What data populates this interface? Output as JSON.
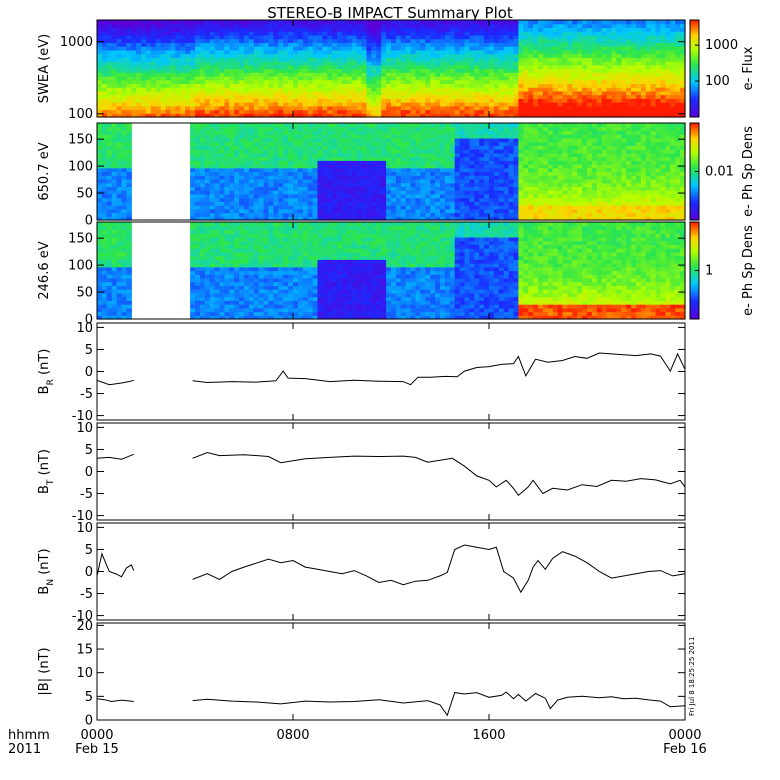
{
  "title": "STEREO-B IMPACT Summary Plot",
  "footer": {
    "left_top": "hhmm",
    "left_bottom": "2011",
    "ticks": [
      {
        "t": 0,
        "top": "0000",
        "bottom": "Feb 15"
      },
      {
        "t": 8,
        "top": "0800",
        "bottom": ""
      },
      {
        "t": 16,
        "top": "1600",
        "bottom": ""
      },
      {
        "t": 24,
        "top": "0000",
        "bottom": "Feb 16"
      }
    ]
  },
  "timestamp": "Fri Jul  8 18:25:25 2011",
  "chart_data": [
    {
      "type": "heatmap",
      "ylabel": "SWEA (eV)",
      "yscale": "log",
      "ylim": [
        90,
        2000
      ],
      "yticks": [
        "1000",
        "100"
      ],
      "yticks_val": [
        1000,
        100
      ],
      "colorbar_label": "e- Flux",
      "colorbar_scale": "log",
      "colorbar_ticks": [
        "1000",
        "100"
      ],
      "colorbar_ticks_val": [
        1000,
        100
      ],
      "colorbar_range": [
        10,
        5000
      ],
      "x_range_hours": [
        0,
        24
      ],
      "data_gap_hours": []
    },
    {
      "type": "heatmap",
      "ylabel": "650.7 eV",
      "ylim": [
        0,
        180
      ],
      "yticks": [
        "150",
        "100",
        "50",
        "0"
      ],
      "yticks_val": [
        150,
        100,
        50,
        0
      ],
      "colorbar_label": "e- Ph Sp Dens",
      "colorbar_ticks": [
        "0.01"
      ],
      "colorbar_ticks_val": [
        0.01
      ],
      "colorbar_scale": "log",
      "colorbar_range": [
        0.001,
        0.1
      ],
      "x_range_hours": [
        0,
        24
      ],
      "data_gap_hours": [
        [
          1.4,
          3.8
        ]
      ]
    },
    {
      "type": "heatmap",
      "ylabel": "246.6 eV",
      "ylim": [
        0,
        180
      ],
      "yticks": [
        "150",
        "100",
        "50",
        "0"
      ],
      "yticks_val": [
        150,
        100,
        50,
        0
      ],
      "colorbar_label": "e- Ph Sp Dens",
      "colorbar_ticks": [
        "1"
      ],
      "colorbar_ticks_val": [
        1
      ],
      "colorbar_scale": "log",
      "colorbar_range": [
        0.1,
        10
      ],
      "x_range_hours": [
        0,
        24
      ],
      "data_gap_hours": [
        [
          1.4,
          3.8
        ]
      ]
    },
    {
      "type": "line",
      "ylabel": "B",
      "ylabel_sub": "R",
      "ylabel_unit": "(nT)",
      "ylim": [
        -11,
        11
      ],
      "yticks": [
        "10",
        "5",
        "0",
        "-5",
        "-10"
      ],
      "yticks_val": [
        10,
        5,
        0,
        -5,
        -10
      ],
      "x": [
        0,
        0.5,
        1.0,
        1.3,
        1.5,
        3.9,
        4.5,
        5.5,
        6.5,
        7.3,
        7.6,
        7.8,
        8.5,
        9.5,
        10.5,
        11.5,
        12.5,
        12.8,
        13.1,
        13.6,
        14.2,
        14.7,
        15.0,
        15.5,
        16.0,
        16.5,
        17.0,
        17.2,
        17.5,
        17.9,
        18.4,
        19.0,
        19.5,
        20.0,
        20.5,
        21.0,
        21.5,
        22.0,
        22.6,
        23.0,
        23.4,
        23.7,
        24.0
      ],
      "values": [
        -2.0,
        -3.0,
        -2.6,
        -2.3,
        -2.0,
        -2.1,
        -2.5,
        -2.3,
        -2.4,
        -2.1,
        0.1,
        -1.5,
        -1.6,
        -2.3,
        -2.0,
        -2.2,
        -2.3,
        -3.0,
        -1.3,
        -1.3,
        -1.1,
        -1.2,
        0.1,
        0.9,
        1.1,
        1.6,
        1.8,
        3.4,
        -1.0,
        2.8,
        2.1,
        2.5,
        3.4,
        3.0,
        4.2,
        4.0,
        3.8,
        3.6,
        4.0,
        3.5,
        0.1,
        4.0,
        0.5
      ],
      "gap_hours": [
        [
          1.5,
          3.9
        ]
      ]
    },
    {
      "type": "line",
      "ylabel": "B",
      "ylabel_sub": "T",
      "ylabel_unit": "(nT)",
      "ylim": [
        -11,
        11
      ],
      "yticks": [
        "10",
        "5",
        "0",
        "-5",
        "-10"
      ],
      "yticks_val": [
        10,
        5,
        0,
        -5,
        -10
      ],
      "x": [
        0,
        0.5,
        1.0,
        1.5,
        3.9,
        4.5,
        5.0,
        6.0,
        7.0,
        7.5,
        8.5,
        9.5,
        10.5,
        11.5,
        12.5,
        13.0,
        13.5,
        14.5,
        15.0,
        15.5,
        16.0,
        16.3,
        16.7,
        17.0,
        17.2,
        17.4,
        17.6,
        17.8,
        18.2,
        18.6,
        19.2,
        19.8,
        20.4,
        21.0,
        21.6,
        22.2,
        22.8,
        23.4,
        23.8,
        24.0
      ],
      "values": [
        3.0,
        3.2,
        2.8,
        3.9,
        3.0,
        4.3,
        3.6,
        3.8,
        3.4,
        2.0,
        2.9,
        3.2,
        3.5,
        3.4,
        3.5,
        3.2,
        2.1,
        3.0,
        1.2,
        -1.0,
        -2.0,
        -3.5,
        -2.0,
        -3.8,
        -5.4,
        -4.5,
        -3.5,
        -2.0,
        -5.0,
        -3.8,
        -4.2,
        -3.0,
        -3.4,
        -2.0,
        -2.2,
        -1.6,
        -1.9,
        -2.8,
        -2.0,
        -3.5
      ],
      "gap_hours": [
        [
          1.5,
          3.9
        ]
      ]
    },
    {
      "type": "line",
      "ylabel": "B",
      "ylabel_sub": "N",
      "ylabel_unit": "(nT)",
      "ylim": [
        -11,
        11
      ],
      "yticks": [
        "10",
        "5",
        "0",
        "-5",
        "-10"
      ],
      "yticks_val": [
        10,
        5,
        0,
        -5,
        -10
      ],
      "x": [
        0,
        0.2,
        0.5,
        0.8,
        1.0,
        1.2,
        1.4,
        1.5,
        3.9,
        4.5,
        5.0,
        5.5,
        6.0,
        7.0,
        7.5,
        8.0,
        8.5,
        9.0,
        10.0,
        10.5,
        11.0,
        11.5,
        12.0,
        12.5,
        13.0,
        13.5,
        14.0,
        14.3,
        14.6,
        15.0,
        15.5,
        16.0,
        16.3,
        16.6,
        17.0,
        17.3,
        17.6,
        17.8,
        18.0,
        18.3,
        18.6,
        19.0,
        19.5,
        20.0,
        20.5,
        21.0,
        22.0,
        22.5,
        23.0,
        23.5,
        24.0
      ],
      "values": [
        -1.0,
        4.0,
        0.0,
        -0.6,
        -1.2,
        0.8,
        1.5,
        0.2,
        -1.8,
        -0.5,
        -1.8,
        0.0,
        1.0,
        2.8,
        2.0,
        2.5,
        1.0,
        0.5,
        -0.5,
        0.2,
        -1.0,
        -2.5,
        -2.0,
        -3.0,
        -2.2,
        -2.0,
        -1.0,
        -0.2,
        5.0,
        6.0,
        5.5,
        5.0,
        5.5,
        0.0,
        -1.5,
        -4.7,
        -2.0,
        1.0,
        2.5,
        0.5,
        3.0,
        4.5,
        3.5,
        2.0,
        0.0,
        -1.5,
        -0.5,
        0.0,
        0.2,
        -1.0,
        -0.5
      ],
      "gap_hours": [
        [
          1.5,
          3.9
        ]
      ]
    },
    {
      "type": "line",
      "ylabel": "|B|",
      "ylabel_unit": "(nT)",
      "ylim": [
        0,
        20.5
      ],
      "yticks": [
        "20",
        "15",
        "10",
        "5",
        "0"
      ],
      "yticks_val": [
        20,
        15,
        10,
        5,
        0
      ],
      "x": [
        0,
        0.3,
        0.6,
        1.0,
        1.5,
        3.9,
        4.5,
        5.5,
        6.5,
        7.5,
        8.5,
        9.5,
        10.5,
        11.5,
        12.5,
        13.5,
        14.0,
        14.3,
        14.6,
        15.0,
        15.5,
        16.0,
        16.5,
        16.7,
        17.0,
        17.2,
        17.5,
        17.9,
        18.3,
        18.5,
        18.8,
        19.2,
        19.8,
        20.5,
        21.0,
        21.5,
        22.0,
        22.6,
        23.0,
        23.4,
        24.0
      ],
      "values": [
        4.5,
        4.3,
        3.9,
        4.2,
        3.9,
        4.1,
        4.4,
        4.0,
        3.8,
        3.4,
        4.0,
        3.8,
        3.9,
        4.3,
        3.6,
        4.1,
        3.2,
        1.0,
        5.8,
        5.5,
        5.8,
        4.8,
        5.2,
        5.9,
        4.5,
        5.4,
        4.0,
        5.6,
        4.6,
        2.4,
        4.2,
        4.8,
        5.0,
        4.7,
        4.9,
        4.5,
        4.6,
        4.2,
        4.0,
        2.8,
        3.0
      ],
      "gap_hours": [
        [
          1.5,
          3.9
        ]
      ]
    }
  ]
}
